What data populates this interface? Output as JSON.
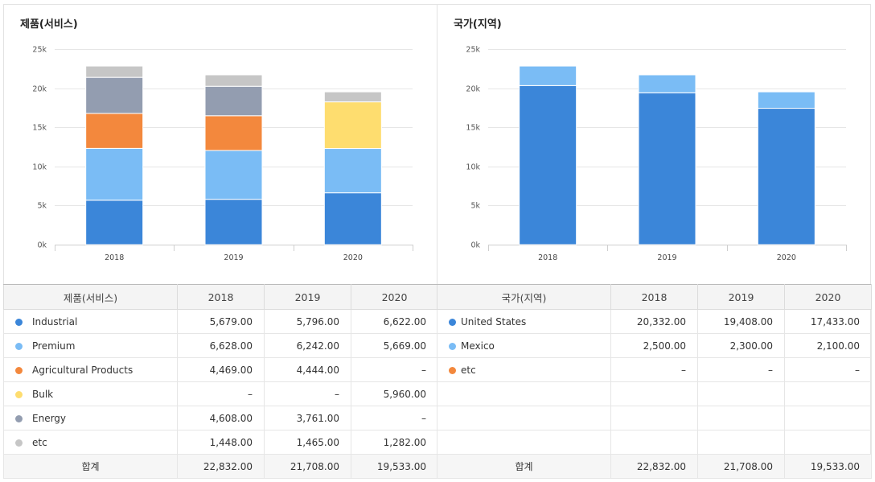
{
  "colors": {
    "Industrial": "#3b86d9",
    "Premium": "#7abcf5",
    "Agricultural Products": "#f3883d",
    "Bulk": "#fedd6f",
    "Energy": "#939db0",
    "etc": "#c6c6c6",
    "United States": "#3b86d9",
    "Mexico": "#7abcf5",
    "etc_region": "#f3883d"
  },
  "product_table": {
    "header": {
      "name": "제품(서비스)",
      "years": [
        "2018",
        "2019",
        "2020"
      ]
    },
    "rows": [
      {
        "name": "Industrial",
        "values": [
          "5,679.00",
          "5,796.00",
          "6,622.00"
        ]
      },
      {
        "name": "Premium",
        "values": [
          "6,628.00",
          "6,242.00",
          "5,669.00"
        ]
      },
      {
        "name": "Agricultural Products",
        "values": [
          "4,469.00",
          "4,444.00",
          "–"
        ]
      },
      {
        "name": "Bulk",
        "values": [
          "–",
          "–",
          "5,960.00"
        ]
      },
      {
        "name": "Energy",
        "values": [
          "4,608.00",
          "3,761.00",
          "–"
        ]
      },
      {
        "name": "etc",
        "values": [
          "1,448.00",
          "1,465.00",
          "1,282.00"
        ]
      }
    ],
    "total": {
      "label": "합계",
      "values": [
        "22,832.00",
        "21,708.00",
        "19,533.00"
      ]
    }
  },
  "region_table": {
    "header": {
      "name": "국가(지역)",
      "years": [
        "2018",
        "2019",
        "2020"
      ]
    },
    "rows": [
      {
        "name": "United States",
        "values": [
          "20,332.00",
          "19,408.00",
          "17,433.00"
        ]
      },
      {
        "name": "Mexico",
        "values": [
          "2,500.00",
          "2,300.00",
          "2,100.00"
        ]
      },
      {
        "name": "etc",
        "values": [
          "–",
          "–",
          "–"
        ]
      }
    ],
    "total": {
      "label": "합계",
      "values": [
        "22,832.00",
        "21,708.00",
        "19,533.00"
      ]
    }
  },
  "chart_data": [
    {
      "type": "bar",
      "stacked": true,
      "title": "제품(서비스)",
      "categories": [
        "2018",
        "2019",
        "2020"
      ],
      "ylim": [
        0,
        25000
      ],
      "yticks": [
        "0k",
        "5k",
        "10k",
        "15k",
        "20k",
        "25k"
      ],
      "grid": true,
      "series": [
        {
          "name": "Industrial",
          "values": [
            5679,
            5796,
            6622
          ]
        },
        {
          "name": "Premium",
          "values": [
            6628,
            6242,
            5669
          ]
        },
        {
          "name": "Agricultural Products",
          "values": [
            4469,
            4444,
            0
          ]
        },
        {
          "name": "Bulk",
          "values": [
            0,
            0,
            5960
          ]
        },
        {
          "name": "Energy",
          "values": [
            4608,
            3761,
            0
          ]
        },
        {
          "name": "etc",
          "values": [
            1448,
            1465,
            1282
          ]
        }
      ]
    },
    {
      "type": "bar",
      "stacked": true,
      "title": "국가(지역)",
      "categories": [
        "2018",
        "2019",
        "2020"
      ],
      "ylim": [
        0,
        25000
      ],
      "yticks": [
        "0k",
        "5k",
        "10k",
        "15k",
        "20k",
        "25k"
      ],
      "grid": true,
      "series": [
        {
          "name": "United States",
          "values": [
            20332,
            19408,
            17433
          ]
        },
        {
          "name": "Mexico",
          "values": [
            2500,
            2300,
            2100
          ]
        }
      ]
    }
  ]
}
